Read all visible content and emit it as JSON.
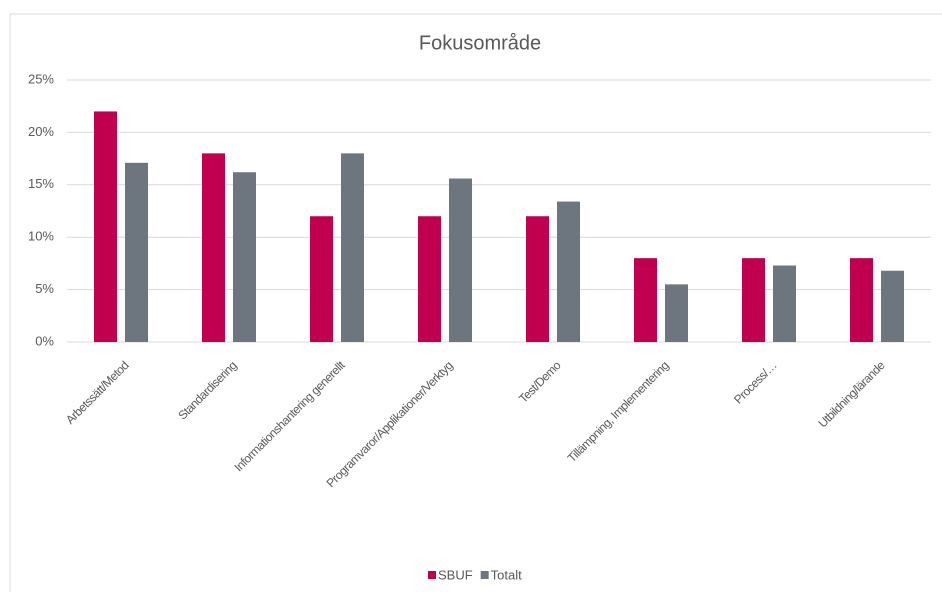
{
  "chart_data": {
    "type": "bar",
    "title": "Fokusområde",
    "categories": [
      "Arbetssätt/Metod",
      "Standardisering",
      "Informationshantering generellt",
      "Programvaror/Applikationer/Verktyg",
      "Test/Demo",
      "Tillämpning, Implementering",
      "Process/…",
      "Utbildning/lärande"
    ],
    "series": [
      {
        "name": "SBUF",
        "color": "#c0004e",
        "values": [
          22,
          18,
          12,
          12,
          12,
          8,
          8,
          8
        ]
      },
      {
        "name": "Totalt",
        "color": "#6d767e",
        "values": [
          17.1,
          16.2,
          18,
          15.6,
          13.4,
          5.5,
          7.3,
          6.8
        ]
      }
    ],
    "ylim": [
      0,
      25
    ],
    "yticks": [
      {
        "value": 0,
        "label": "0%"
      },
      {
        "value": 5,
        "label": "5%"
      },
      {
        "value": 10,
        "label": "10%"
      },
      {
        "value": 15,
        "label": "15%"
      },
      {
        "value": 20,
        "label": "20%"
      },
      {
        "value": 25,
        "label": "25%"
      }
    ],
    "grid": true,
    "legend": "bottom"
  }
}
